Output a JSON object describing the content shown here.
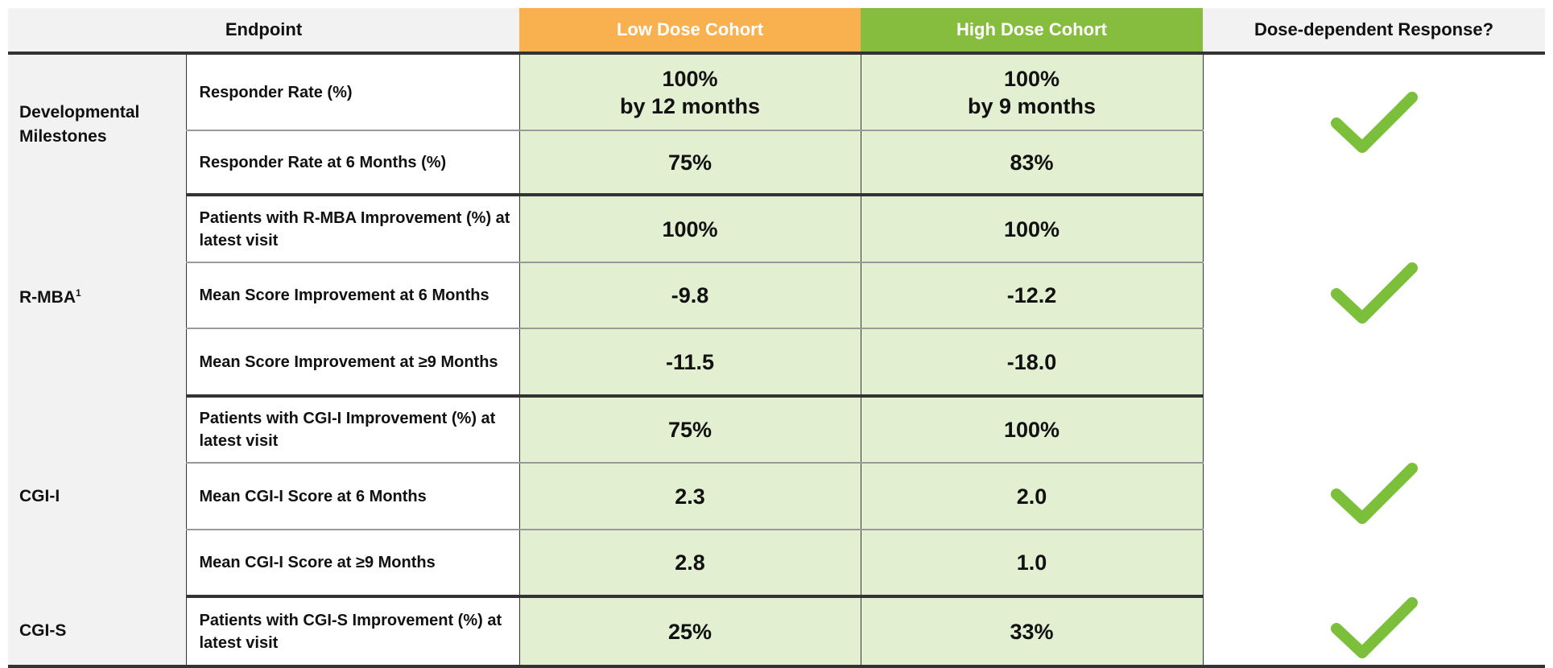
{
  "header": {
    "endpoint": "Endpoint",
    "low": "Low Dose Cohort",
    "high": "High Dose Cohort",
    "dose": "Dose-dependent Response?"
  },
  "colors": {
    "low": "#f9b04f",
    "high": "#86bd3f",
    "value_bg": "#e2efd0",
    "check": "#7bbf3a"
  },
  "groups": [
    {
      "name": "Developmental Milestones",
      "dose_dependent": "check-icon",
      "rows": [
        {
          "metric": "Responder Rate (%)",
          "low": "100%",
          "low2": "by 12 months",
          "high": "100%",
          "high2": "by 9 months"
        },
        {
          "metric": "Responder Rate at 6 Months (%)",
          "low": "75%",
          "high": "83%"
        }
      ]
    },
    {
      "name": "R-MBA",
      "sup": "1",
      "dose_dependent": "check-icon",
      "rows": [
        {
          "metric": "Patients with R-MBA Improvement (%) at latest visit",
          "low": "100%",
          "high": "100%"
        },
        {
          "metric": "Mean Score Improvement at 6 Months",
          "low": "-9.8",
          "high": "-12.2"
        },
        {
          "metric": "Mean Score Improvement at ≥9 Months",
          "low": "-11.5",
          "high": "-18.0"
        }
      ]
    },
    {
      "name": "CGI-I",
      "dose_dependent": "check-icon",
      "rows": [
        {
          "metric": "Patients with CGI-I Improvement (%) at latest visit",
          "low": "75%",
          "high": "100%"
        },
        {
          "metric": "Mean CGI-I Score at 6 Months",
          "low": "2.3",
          "high": "2.0"
        },
        {
          "metric": "Mean CGI-I Score at ≥9 Months",
          "low": "2.8",
          "high": "1.0"
        }
      ]
    },
    {
      "name": "CGI-S",
      "dose_dependent": "check-icon",
      "rows": [
        {
          "metric": "Patients with CGI-S Improvement (%) at latest visit",
          "low": "25%",
          "high": "33%"
        }
      ]
    }
  ]
}
